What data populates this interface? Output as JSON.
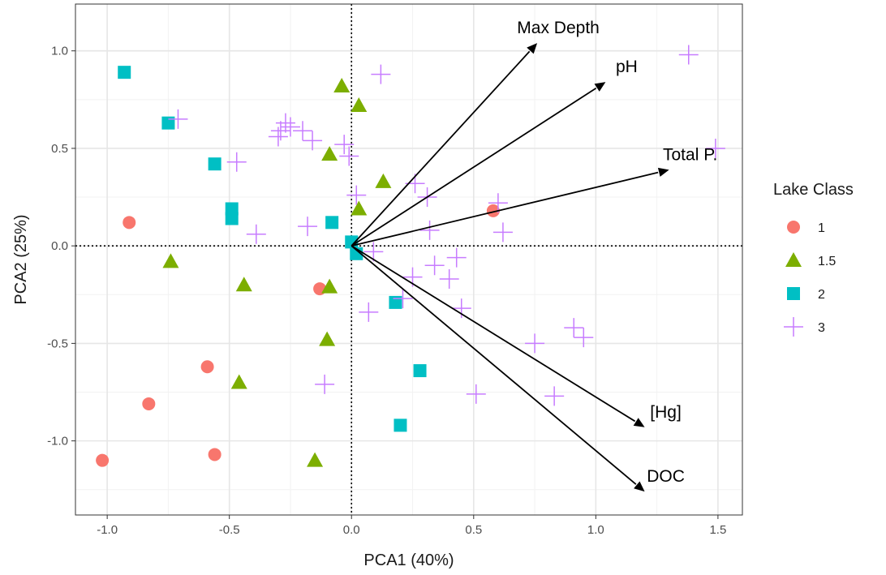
{
  "chart_data": {
    "type": "scatter",
    "xlabel": "PCA1 (40%)",
    "ylabel": "PCA2 (25%)",
    "xlim": [
      -1.13,
      1.6
    ],
    "ylim": [
      -1.38,
      1.24
    ],
    "x_ticks": [
      "-1.0",
      "-0.5",
      "0.0",
      "0.5",
      "1.0",
      "1.5"
    ],
    "y_ticks": [
      "1.0",
      "0.5",
      "0.0",
      "-0.5",
      "-1.0"
    ],
    "grid": true,
    "reference_lines": {
      "x": 0,
      "y": 0,
      "style": "dotted"
    },
    "legend": {
      "title": "Lake Class",
      "position": "right"
    },
    "series": [
      {
        "name": "1",
        "marker": "circle",
        "color": "#F8766D",
        "points": [
          [
            -0.91,
            0.12
          ],
          [
            0.58,
            0.18
          ],
          [
            -0.13,
            -0.22
          ],
          [
            -0.59,
            -0.62
          ],
          [
            -0.83,
            -0.81
          ],
          [
            -0.56,
            -1.07
          ],
          [
            -1.02,
            -1.1
          ]
        ]
      },
      {
        "name": "1.5",
        "marker": "triangle",
        "color": "#7CAE00",
        "points": [
          [
            -0.04,
            0.82
          ],
          [
            0.03,
            0.72
          ],
          [
            -0.09,
            0.47
          ],
          [
            0.13,
            0.33
          ],
          [
            0.03,
            0.19
          ],
          [
            -0.74,
            -0.08
          ],
          [
            -0.44,
            -0.2
          ],
          [
            -0.09,
            -0.21
          ],
          [
            -0.1,
            -0.48
          ],
          [
            -0.46,
            -0.7
          ],
          [
            -0.15,
            -1.1
          ]
        ]
      },
      {
        "name": "2",
        "marker": "square",
        "color": "#00BFC4",
        "points": [
          [
            -0.93,
            0.89
          ],
          [
            -0.75,
            0.63
          ],
          [
            -0.56,
            0.42
          ],
          [
            -0.49,
            0.19
          ],
          [
            -0.49,
            0.14
          ],
          [
            -0.08,
            0.12
          ],
          [
            0.0,
            0.02
          ],
          [
            0.02,
            -0.04
          ],
          [
            0.18,
            -0.29
          ],
          [
            0.28,
            -0.64
          ],
          [
            0.2,
            -0.92
          ]
        ]
      },
      {
        "name": "3",
        "marker": "plus",
        "color": "#C77CFF",
        "points": [
          [
            -0.71,
            0.65
          ],
          [
            0.12,
            0.88
          ],
          [
            1.38,
            0.98
          ],
          [
            -0.27,
            0.63
          ],
          [
            -0.29,
            0.59
          ],
          [
            -0.25,
            0.61
          ],
          [
            -0.3,
            0.56
          ],
          [
            -0.2,
            0.59
          ],
          [
            -0.16,
            0.54
          ],
          [
            -0.03,
            0.52
          ],
          [
            -0.01,
            0.46
          ],
          [
            -0.47,
            0.43
          ],
          [
            1.49,
            0.5
          ],
          [
            0.26,
            0.32
          ],
          [
            0.31,
            0.25
          ],
          [
            0.02,
            0.26
          ],
          [
            0.6,
            0.22
          ],
          [
            -0.18,
            0.1
          ],
          [
            0.32,
            0.08
          ],
          [
            0.62,
            0.07
          ],
          [
            -0.39,
            0.06
          ],
          [
            0.09,
            -0.03
          ],
          [
            0.43,
            -0.06
          ],
          [
            0.34,
            -0.1
          ],
          [
            0.25,
            -0.16
          ],
          [
            0.4,
            -0.17
          ],
          [
            0.21,
            -0.27
          ],
          [
            0.45,
            -0.32
          ],
          [
            0.07,
            -0.34
          ],
          [
            0.91,
            -0.42
          ],
          [
            0.95,
            -0.47
          ],
          [
            0.75,
            -0.5
          ],
          [
            -0.11,
            -0.71
          ],
          [
            0.51,
            -0.76
          ],
          [
            0.83,
            -0.77
          ]
        ]
      }
    ],
    "vectors": [
      {
        "label": "Max Depth",
        "x": 0.76,
        "y": 1.04
      },
      {
        "label": "pH",
        "x": 1.04,
        "y": 0.84
      },
      {
        "label": "Total P.",
        "x": 1.3,
        "y": 0.39
      },
      {
        "label": "[Hg]",
        "x": 1.2,
        "y": -0.93
      },
      {
        "label": "DOC",
        "x": 1.2,
        "y": -1.26
      }
    ]
  }
}
